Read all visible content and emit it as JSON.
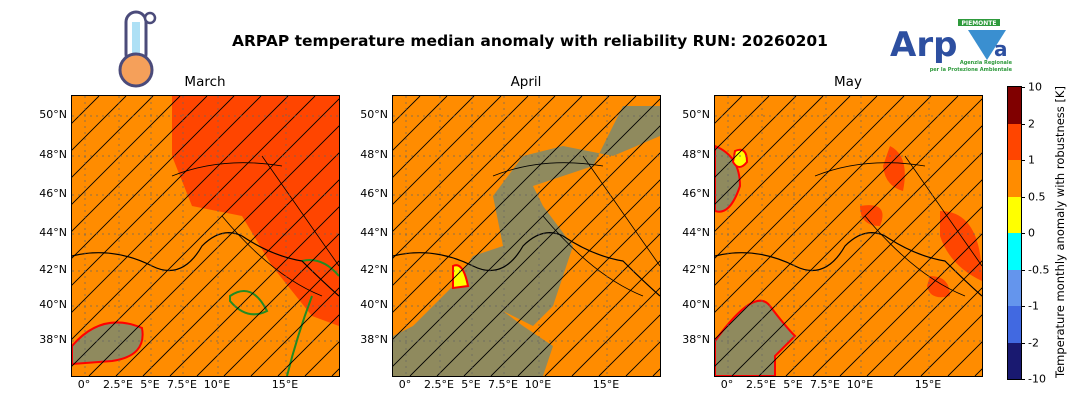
{
  "title": "ARPAP temperature median anomaly with reliability RUN: 20260201",
  "logo": {
    "text": "Arpa",
    "region": "PIEMONTE",
    "subtitle": "Agenzia Regionale per la Protezione Ambientale",
    "icon": "thermometer-icon"
  },
  "panels": [
    {
      "title": "March"
    },
    {
      "title": "April"
    },
    {
      "title": "May"
    }
  ],
  "lat_ticks": [
    "50°N",
    "48°N",
    "46°N",
    "44°N",
    "42°N",
    "40°N",
    "38°N"
  ],
  "lon_ticks": [
    "0°",
    "2.5°E",
    "5°E",
    "7.5°E",
    "10°E",
    "15°E"
  ],
  "colorbar": {
    "label": "Temperature monthly anomaly with robustness [K]",
    "ticks": [
      "10",
      "2",
      "1",
      "0.5",
      "0",
      "-0.5",
      "-1",
      "-2",
      "-10"
    ],
    "colors": [
      "#800000",
      "#ff4500",
      "#ff8c00",
      "#ffff00",
      "#00ffff",
      "#6495ed",
      "#4169e1",
      "#191970"
    ]
  },
  "colors": {
    "main": "#ff8c00",
    "strong": "#ff4500",
    "unreliable": "#8f8a5e",
    "contour": "#ff0000",
    "green_contour": "#228b22"
  }
}
